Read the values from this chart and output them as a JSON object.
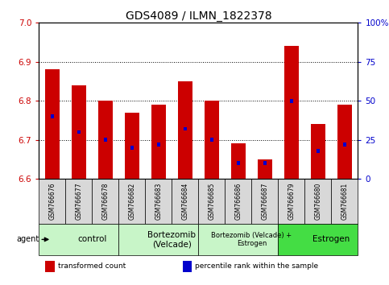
{
  "title": "GDS4089 / ILMN_1822378",
  "samples": [
    "GSM766676",
    "GSM766677",
    "GSM766678",
    "GSM766682",
    "GSM766683",
    "GSM766684",
    "GSM766685",
    "GSM766686",
    "GSM766687",
    "GSM766679",
    "GSM766680",
    "GSM766681"
  ],
  "transformed_counts": [
    6.88,
    6.84,
    6.8,
    6.77,
    6.79,
    6.85,
    6.8,
    6.69,
    6.65,
    6.94,
    6.74,
    6.79
  ],
  "percentile_ranks": [
    40,
    30,
    25,
    20,
    22,
    32,
    25,
    10,
    10,
    50,
    18,
    22
  ],
  "bar_bottom": 6.6,
  "ylim_left": [
    6.6,
    7.0
  ],
  "ylim_right": [
    0,
    100
  ],
  "yticks_left": [
    6.6,
    6.7,
    6.8,
    6.9,
    7.0
  ],
  "yticks_right": [
    0,
    25,
    50,
    75,
    100
  ],
  "ytick_labels_right": [
    "0",
    "25",
    "50",
    "75",
    "100%"
  ],
  "bar_color": "#CC0000",
  "percentile_color": "#0000CC",
  "bar_width": 0.55,
  "groups": [
    {
      "label": "control",
      "start": 0,
      "end": 3,
      "color": "#c8f5c8"
    },
    {
      "label": "Bortezomib\n(Velcade)",
      "start": 3,
      "end": 6,
      "color": "#c8f5c8"
    },
    {
      "label": "Bortezomib (Velcade) +\nEstrogen",
      "start": 6,
      "end": 9,
      "color": "#c8f5c8"
    },
    {
      "label": "Estrogen",
      "start": 9,
      "end": 12,
      "color": "#44dd44"
    }
  ],
  "agent_label": "agent",
  "legend_items": [
    {
      "color": "#CC0000",
      "label": "transformed count"
    },
    {
      "color": "#0000CC",
      "label": "percentile rank within the sample"
    }
  ],
  "grid_color": "black",
  "plot_bg_color": "white",
  "title_fontsize": 10,
  "tick_fontsize": 7.5,
  "sample_fontsize": 5.5
}
